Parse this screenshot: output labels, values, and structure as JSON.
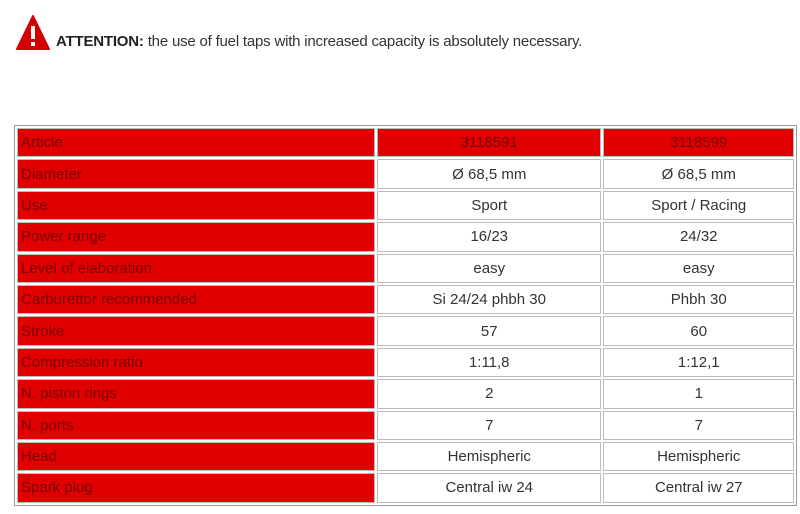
{
  "notice": {
    "label": "ATTENTION:",
    "text": "the use of fuel taps with increased capacity is absolutely necessary."
  },
  "table": {
    "header": [
      "Article",
      "3118591",
      "3118599"
    ],
    "rows": [
      [
        "Diameter",
        "Ø 68,5 mm",
        "Ø 68,5 mm"
      ],
      [
        "Use",
        "Sport",
        "Sport / Racing"
      ],
      [
        "Power range",
        "16/23",
        "24/32"
      ],
      [
        "Level of elaboration",
        "easy",
        "easy"
      ],
      [
        "Carburettor recommended",
        "Si 24/24 phbh 30",
        "Phbh 30"
      ],
      [
        "Stroke",
        "57",
        "60"
      ],
      [
        "Compression ratio",
        "1:11,8",
        "1:12,1"
      ],
      [
        "N. piston rings",
        "2",
        "1"
      ],
      [
        "N. ports",
        "7",
        "7"
      ],
      [
        "Head",
        "Hemispheric",
        "Hemispheric"
      ],
      [
        "Spark plug",
        "Central iw 24",
        "Central iw 27"
      ]
    ]
  }
}
